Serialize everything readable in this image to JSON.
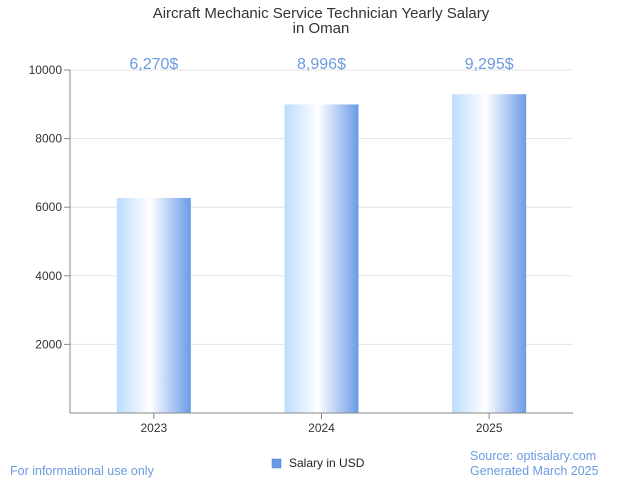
{
  "chart_data": {
    "type": "bar",
    "title_lines": [
      "Aircraft Mechanic Service Technician Yearly Salary",
      "in Oman"
    ],
    "categories": [
      "2023",
      "2024",
      "2025"
    ],
    "series": [
      {
        "name": "Salary in USD",
        "values": [
          6270,
          8996,
          9295
        ],
        "labels": [
          "6,270$",
          "8,996$",
          "9,295$"
        ]
      }
    ],
    "xlabel": "",
    "ylabel": "",
    "ylim": [
      0,
      10000
    ],
    "yticks": [
      2000,
      4000,
      6000,
      8000,
      10000
    ],
    "ytick_labels": [
      "2000",
      "4000",
      "6000",
      "8000",
      "10000"
    ],
    "grid": true,
    "legend_position": "bottom-center"
  },
  "colors": {
    "bar_light": "#ffffff",
    "bar_mid": "#bcdcff",
    "bar_dark": "#6a9be8",
    "label": "#6a9be0",
    "grid": "#e3e3e3",
    "axis": "#888888"
  },
  "footer": {
    "left": "For informational use only",
    "source": "Source: optisalary.com",
    "generated": "Generated March 2025"
  }
}
